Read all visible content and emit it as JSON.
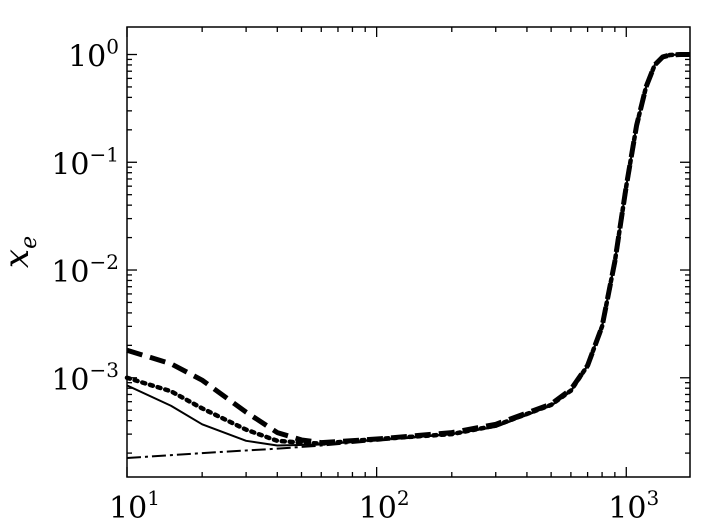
{
  "chart_data": {
    "type": "line",
    "title": "",
    "xlabel": "",
    "ylabel_base": "x",
    "ylabel_sub": "e",
    "x_scale": "log",
    "y_scale": "log",
    "xlim": [
      10,
      1800
    ],
    "ylim": [
      0.00012,
      1.8
    ],
    "x_ticks": [
      {
        "value": 10,
        "base": "10",
        "exp": "1"
      },
      {
        "value": 100,
        "base": "10",
        "exp": "2"
      },
      {
        "value": 1000,
        "base": "10",
        "exp": "3"
      }
    ],
    "y_ticks": [
      {
        "value": 0.001,
        "base": "10",
        "exp": "−3"
      },
      {
        "value": 0.01,
        "base": "10",
        "exp": "−2"
      },
      {
        "value": 0.1,
        "base": "10",
        "exp": "−1"
      },
      {
        "value": 1,
        "base": "10",
        "exp": "0"
      }
    ],
    "grid": false,
    "series": [
      {
        "style": "dashdot",
        "x": [
          10,
          20,
          40,
          60,
          100,
          200,
          300,
          500,
          600,
          700,
          800,
          900,
          1000,
          1100,
          1200,
          1300,
          1400,
          1500,
          1650,
          1800
        ],
        "y": [
          0.00018,
          0.0002,
          0.00022,
          0.000235,
          0.00026,
          0.0003,
          0.00035,
          0.00055,
          0.00075,
          0.0013,
          0.003,
          0.012,
          0.06,
          0.22,
          0.5,
          0.8,
          0.95,
          0.99,
          1.0,
          1.0
        ]
      },
      {
        "style": "solid",
        "x": [
          10,
          15,
          20,
          30,
          40,
          60,
          100,
          200,
          300,
          500,
          600,
          700,
          800,
          900,
          1000,
          1100,
          1200,
          1300,
          1400,
          1500,
          1650,
          1800
        ],
        "y": [
          0.00085,
          0.00055,
          0.00037,
          0.00026,
          0.000235,
          0.00024,
          0.000265,
          0.0003,
          0.00035,
          0.00055,
          0.00075,
          0.0013,
          0.003,
          0.012,
          0.06,
          0.22,
          0.5,
          0.8,
          0.95,
          0.99,
          1.0,
          1.0
        ]
      },
      {
        "style": "dotted",
        "x": [
          10,
          15,
          20,
          30,
          40,
          50,
          60,
          100,
          200,
          300,
          500,
          600,
          700,
          800,
          900,
          1000,
          1100,
          1200,
          1300,
          1400,
          1500,
          1650,
          1800
        ],
        "y": [
          0.001,
          0.00075,
          0.00052,
          0.00033,
          0.00026,
          0.00025,
          0.000245,
          0.00027,
          0.0003,
          0.00036,
          0.00056,
          0.00076,
          0.0013,
          0.003,
          0.012,
          0.06,
          0.22,
          0.5,
          0.8,
          0.95,
          0.99,
          1.0,
          1.0
        ]
      },
      {
        "style": "dashed",
        "x": [
          10,
          15,
          20,
          30,
          40,
          50,
          60,
          100,
          200,
          300,
          500,
          600,
          700,
          800,
          900,
          1000,
          1100,
          1200,
          1300,
          1400,
          1500,
          1650,
          1800
        ],
        "y": [
          0.0018,
          0.00135,
          0.00095,
          0.00048,
          0.00031,
          0.000265,
          0.00025,
          0.00027,
          0.00031,
          0.00037,
          0.00057,
          0.00078,
          0.0013,
          0.003,
          0.012,
          0.06,
          0.22,
          0.5,
          0.8,
          0.95,
          0.99,
          1.0,
          1.0
        ]
      }
    ]
  }
}
